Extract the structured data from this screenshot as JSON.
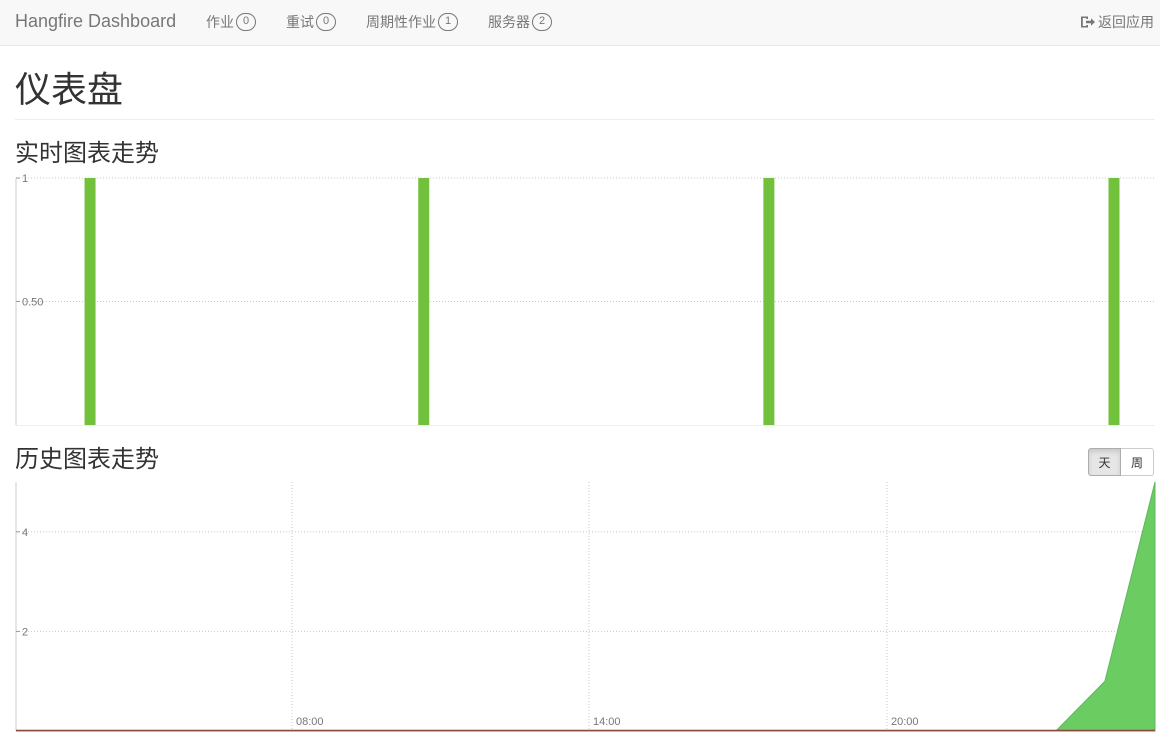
{
  "navbar": {
    "brand": "Hangfire Dashboard",
    "items": [
      {
        "label": "作业",
        "count": "0"
      },
      {
        "label": "重试",
        "count": "0"
      },
      {
        "label": "周期性作业",
        "count": "1"
      },
      {
        "label": "服务器",
        "count": "2"
      }
    ],
    "back_label": "返回应用",
    "back_icon": "sign-out-icon"
  },
  "page": {
    "title": "仪表盘",
    "realtime_title": "实时图表走势",
    "history_title": "历史图表走势",
    "history_toggle": {
      "options": [
        "天",
        "周"
      ],
      "selected": "天"
    }
  },
  "colors": {
    "succeeded": "#71c13d",
    "succeeded_area": "#6bcc62",
    "failed": "#d9534f"
  },
  "chart_data": [
    {
      "type": "bar",
      "name": "realtime",
      "ylim": [
        0,
        1
      ],
      "ytick_labels": [
        "0.50",
        "1"
      ],
      "ytick_values": [
        0.5,
        1
      ],
      "x_fraction": [
        0.065,
        0.358,
        0.661,
        0.964
      ],
      "values": [
        1,
        1,
        1,
        1
      ],
      "grid": true
    },
    {
      "type": "area",
      "name": "history",
      "ylim": [
        0,
        5
      ],
      "ytick_labels": [
        "2",
        "4"
      ],
      "ytick_values": [
        2,
        4
      ],
      "xtick_labels": [
        "08:00",
        "14:00",
        "20:00"
      ],
      "x_fraction": [
        0.0,
        0.913,
        0.956,
        1.0
      ],
      "values": [
        0,
        0,
        1,
        5
      ],
      "grid": true
    }
  ]
}
